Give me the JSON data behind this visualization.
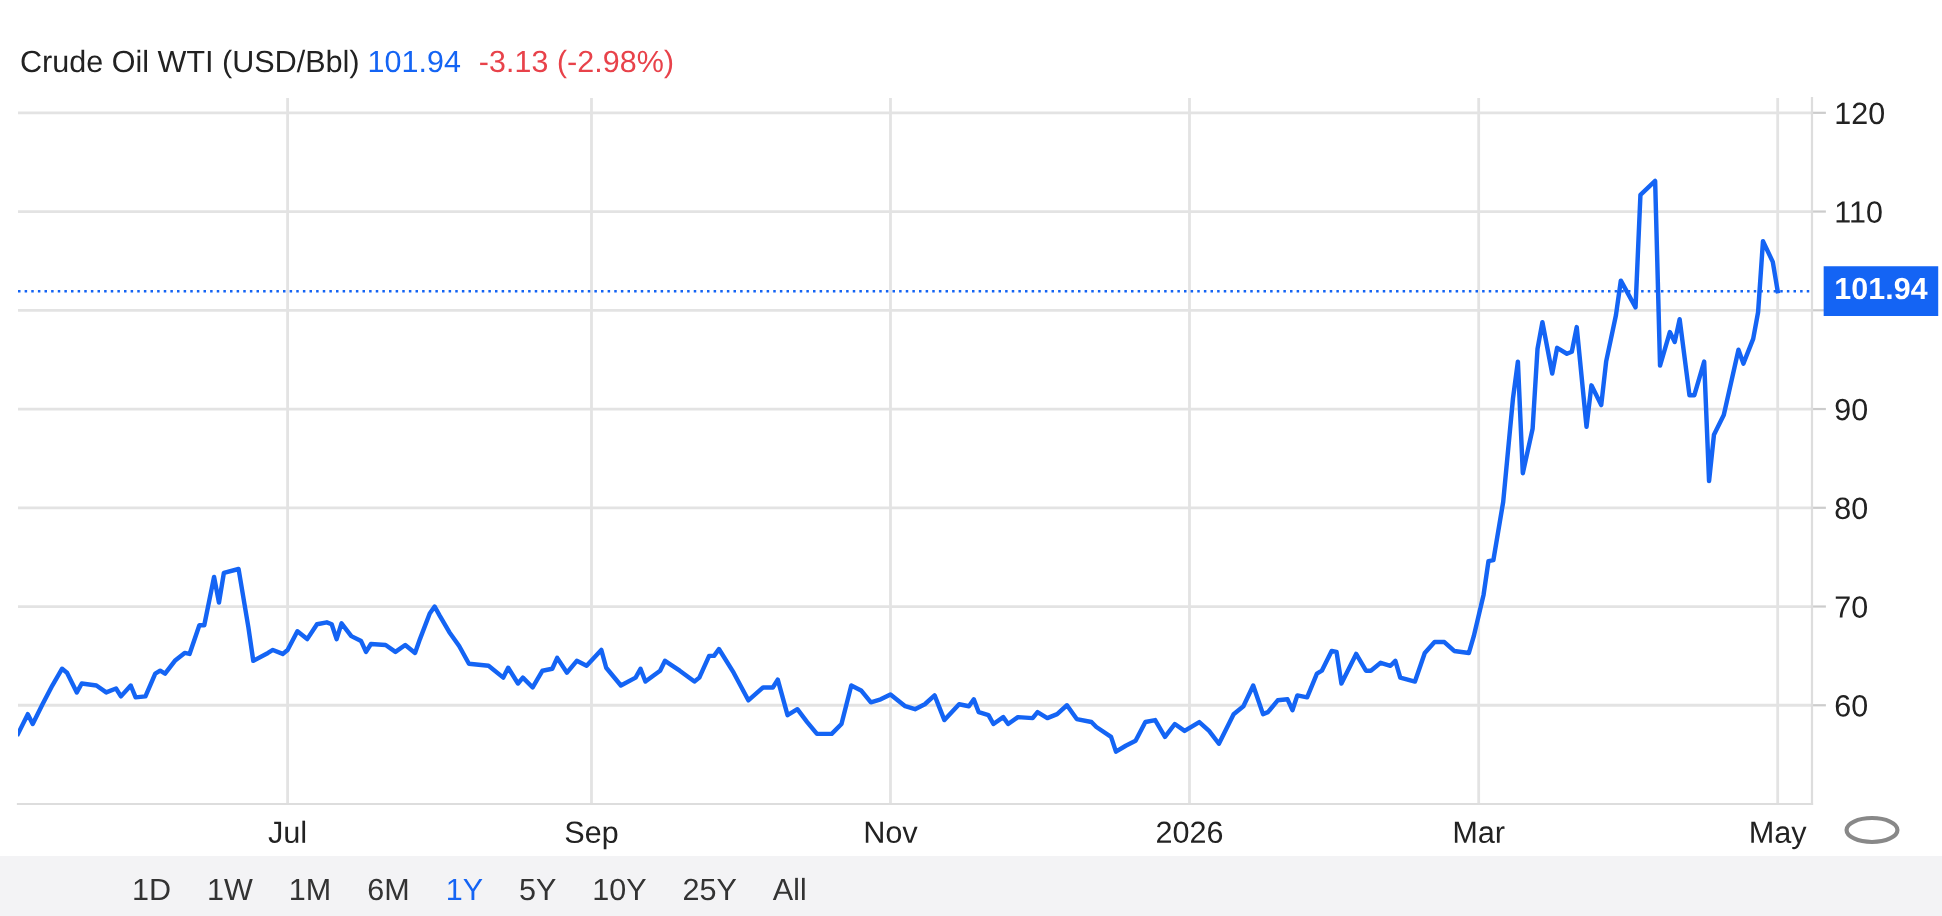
{
  "chart_data": {
    "type": "line",
    "title": "Crude Oil WTI (USD/Bbl)",
    "annotations": [
      {
        "text": "101.94"
      },
      {
        "text": "-3.13 (-2.98%)"
      },
      {
        "text": "1D"
      },
      {
        "text": "1W"
      },
      {
        "text": "1M"
      },
      {
        "text": "6M"
      },
      {
        "text": "1Y"
      },
      {
        "text": "5Y"
      },
      {
        "text": "10Y"
      },
      {
        "text": "25Y"
      },
      {
        "text": "All"
      }
    ],
    "x": [
      "2025-05-07",
      "2025-05-09",
      "2025-05-10",
      "2025-05-12",
      "2025-05-14",
      "2025-05-16",
      "2025-05-17",
      "2025-05-19",
      "2025-05-20",
      "2025-05-23",
      "2025-05-25",
      "2025-05-27",
      "2025-05-28",
      "2025-05-30",
      "2025-05-31",
      "2025-06-02",
      "2025-06-04",
      "2025-06-05",
      "2025-06-06",
      "2025-06-08",
      "2025-06-10",
      "2025-06-11",
      "2025-06-13",
      "2025-06-14",
      "2025-06-16",
      "2025-06-17",
      "2025-06-18",
      "2025-06-21",
      "2025-06-23",
      "2025-06-24",
      "2025-06-27",
      "2025-06-28",
      "2025-06-30",
      "2025-07-01",
      "2025-07-03",
      "2025-07-05",
      "2025-07-07",
      "2025-07-09",
      "2025-07-10",
      "2025-07-11",
      "2025-07-12",
      "2025-07-14",
      "2025-07-16",
      "2025-07-17",
      "2025-07-18",
      "2025-07-21",
      "2025-07-23",
      "2025-07-25",
      "2025-07-27",
      "2025-07-28",
      "2025-07-30",
      "2025-07-31",
      "2025-08-01",
      "2025-08-03",
      "2025-08-05",
      "2025-08-07",
      "2025-08-11",
      "2025-08-14",
      "2025-08-15",
      "2025-08-17",
      "2025-08-18",
      "2025-08-20",
      "2025-08-22",
      "2025-08-24",
      "2025-08-25",
      "2025-08-27",
      "2025-08-29",
      "2025-08-31",
      "2025-09-03",
      "2025-09-04",
      "2025-09-07",
      "2025-09-10",
      "2025-09-11",
      "2025-09-12",
      "2025-09-15",
      "2025-09-16",
      "2025-09-19",
      "2025-09-22",
      "2025-09-23",
      "2025-09-25",
      "2025-09-26",
      "2025-09-27",
      "2025-09-30",
      "2025-10-03",
      "2025-10-06",
      "2025-10-08",
      "2025-10-09",
      "2025-10-11",
      "2025-10-13",
      "2025-10-15",
      "2025-10-17",
      "2025-10-20",
      "2025-10-22",
      "2025-10-24",
      "2025-10-26",
      "2025-10-28",
      "2025-10-30",
      "2025-11-01",
      "2025-11-04",
      "2025-11-06",
      "2025-11-08",
      "2025-11-10",
      "2025-11-12",
      "2025-11-15",
      "2025-11-17",
      "2025-11-18",
      "2025-11-19",
      "2025-11-21",
      "2025-11-22",
      "2025-11-24",
      "2025-11-25",
      "2025-11-27",
      "2025-11-30",
      "2025-12-01",
      "2025-12-03",
      "2025-12-05",
      "2025-12-07",
      "2025-12-09",
      "2025-12-12",
      "2025-12-13",
      "2025-12-16",
      "2025-12-17",
      "2025-12-19",
      "2025-12-21",
      "2025-12-23",
      "2025-12-25",
      "2025-12-27",
      "2025-12-29",
      "2025-12-31",
      "2026-01-03",
      "2026-01-05",
      "2026-01-07",
      "2026-01-10",
      "2026-01-12",
      "2026-01-14",
      "2026-01-16",
      "2026-01-17",
      "2026-01-19",
      "2026-01-21",
      "2026-01-22",
      "2026-01-23",
      "2026-01-25",
      "2026-01-27",
      "2026-01-28",
      "2026-01-30",
      "2026-01-31",
      "2026-02-01",
      "2026-02-04",
      "2026-02-06",
      "2026-02-07",
      "2026-02-09",
      "2026-02-11",
      "2026-02-12",
      "2026-02-13",
      "2026-02-16",
      "2026-02-18",
      "2026-02-20",
      "2026-02-22",
      "2026-02-24",
      "2026-02-27",
      "2026-02-28",
      "2026-03-02",
      "2026-03-03",
      "2026-03-04",
      "2026-03-06",
      "2026-03-08",
      "2026-03-09",
      "2026-03-10",
      "2026-03-12",
      "2026-03-13",
      "2026-03-14",
      "2026-03-16",
      "2026-03-17",
      "2026-03-19",
      "2026-03-20",
      "2026-03-21",
      "2026-03-23",
      "2026-03-24",
      "2026-03-26",
      "2026-03-27",
      "2026-03-29",
      "2026-03-30",
      "2026-04-02",
      "2026-04-03",
      "2026-04-06",
      "2026-04-07",
      "2026-04-09",
      "2026-04-10",
      "2026-04-11",
      "2026-04-13",
      "2026-04-14",
      "2026-04-16",
      "2026-04-17",
      "2026-04-18",
      "2026-04-20",
      "2026-04-23",
      "2026-04-24",
      "2026-04-26",
      "2026-04-27",
      "2026-04-28",
      "2026-04-30",
      "2026-05-01"
    ],
    "series": [
      {
        "color": "#1464f4",
        "values": [
          57.1,
          59.1,
          58.1,
          60.1,
          62.0,
          63.7,
          63.3,
          61.3,
          62.2,
          62.0,
          61.3,
          61.7,
          60.9,
          62.0,
          60.8,
          60.9,
          63.2,
          63.5,
          63.2,
          64.5,
          65.3,
          65.2,
          68.1,
          68.1,
          73.0,
          70.4,
          73.4,
          73.8,
          67.9,
          64.5,
          65.3,
          65.6,
          65.2,
          65.6,
          67.5,
          66.7,
          68.2,
          68.4,
          68.2,
          66.7,
          68.3,
          67.0,
          66.5,
          65.4,
          66.2,
          66.1,
          65.4,
          66.1,
          65.3,
          66.7,
          69.3,
          70.0,
          69.1,
          67.4,
          66.0,
          64.2,
          64.0,
          62.8,
          63.8,
          62.2,
          62.8,
          61.8,
          63.5,
          63.7,
          64.8,
          63.3,
          64.5,
          64.0,
          65.6,
          63.8,
          62.0,
          62.8,
          63.7,
          62.4,
          63.5,
          64.5,
          63.5,
          62.4,
          62.8,
          65.0,
          65.0,
          65.7,
          63.3,
          60.5,
          61.8,
          61.8,
          62.6,
          59.0,
          59.6,
          58.3,
          57.1,
          57.1,
          58.1,
          62.0,
          61.5,
          60.3,
          60.6,
          61.1,
          59.9,
          59.6,
          60.1,
          61.0,
          58.5,
          60.1,
          59.9,
          60.6,
          59.3,
          59.0,
          58.1,
          58.8,
          58.1,
          58.8,
          58.7,
          59.3,
          58.7,
          59.1,
          60.0,
          58.6,
          58.3,
          57.8,
          56.8,
          55.3,
          55.9,
          56.4,
          58.3,
          58.5,
          56.8,
          58.1,
          57.4,
          58.3,
          57.4,
          56.1,
          59.1,
          59.9,
          62.0,
          59.1,
          59.3,
          60.5,
          60.6,
          59.5,
          61.0,
          60.8,
          63.2,
          63.5,
          65.5,
          65.4,
          62.2,
          65.2,
          63.5,
          63.5,
          64.3,
          64.0,
          64.5,
          62.8,
          62.4,
          65.3,
          66.4,
          66.4,
          65.5,
          65.3,
          67.0,
          71.2,
          74.6,
          74.7,
          80.6,
          91.1,
          94.8,
          83.5,
          88.0,
          96.1,
          98.8,
          93.6,
          96.2,
          95.6,
          95.8,
          98.3,
          88.2,
          92.4,
          90.4,
          94.8,
          99.5,
          103.0,
          100.3,
          111.7,
          113.1,
          94.4,
          97.8,
          96.8,
          99.1,
          91.4,
          91.4,
          94.8,
          82.7,
          87.4,
          89.4,
          96.0,
          94.6,
          97.1,
          99.8,
          107.0,
          104.9,
          101.94
        ]
      }
    ],
    "xlim": [
      "2025-05-07",
      "2026-05-08"
    ],
    "xticks": [
      {
        "value": "2025-07-01",
        "label": "Jul"
      },
      {
        "value": "2025-09-01",
        "label": "Sep"
      },
      {
        "value": "2025-11-01",
        "label": "Nov"
      },
      {
        "value": "2026-01-01",
        "label": "2026"
      },
      {
        "value": "2026-03-01",
        "label": "Mar"
      },
      {
        "value": "2026-05-01",
        "label": "May"
      }
    ],
    "ylim": [
      50,
      121.5
    ],
    "yticks": [
      60,
      70,
      80,
      90,
      {
        "value": 100,
        "label": null
      },
      110,
      120
    ],
    "ref_lines": [
      {
        "axis": "y",
        "value": 101.94,
        "label": "101.94",
        "color": "#1464f4",
        "line_style": "dotted"
      }
    ],
    "grid": true,
    "legend": false,
    "marker": "none",
    "line_style": "solid"
  }
}
